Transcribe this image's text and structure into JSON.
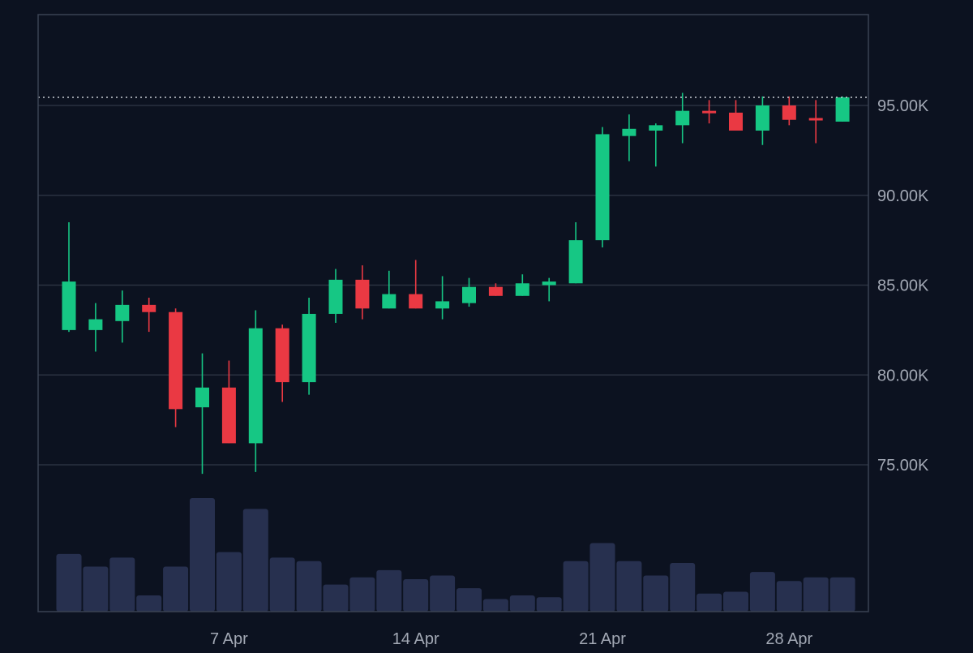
{
  "colors": {
    "background": "#0c1220",
    "frame": "#3a4252",
    "grid": "#2a3140",
    "up": "#16c784",
    "down": "#ea3943",
    "volume": "#27304f",
    "axis_text": "#a3a9b5",
    "price_line": "#c8ccd4"
  },
  "chart_data": {
    "type": "candlestick",
    "x_tick_labels": [
      {
        "label": "7 Apr",
        "date": "2025-04-07"
      },
      {
        "label": "14 Apr",
        "date": "2025-04-14"
      },
      {
        "label": "21 Apr",
        "date": "2025-04-21"
      },
      {
        "label": "28 Apr",
        "date": "2025-04-28"
      }
    ],
    "y_tick_values": [
      75000,
      80000,
      85000,
      90000,
      95000
    ],
    "y_tick_labels": [
      "75.00K",
      "80.00K",
      "85.00K",
      "90.00K",
      "95.00K"
    ],
    "ylim": [
      73000,
      100000
    ],
    "last_price": 95450,
    "grid": true,
    "candles": [
      {
        "date": "2025-04-01",
        "open": 82500,
        "high": 88500,
        "low": 82400,
        "close": 85200,
        "volume": 32
      },
      {
        "date": "2025-04-02",
        "open": 82500,
        "high": 84000,
        "low": 81300,
        "close": 83100,
        "volume": 25
      },
      {
        "date": "2025-04-03",
        "open": 83000,
        "high": 84700,
        "low": 81800,
        "close": 83900,
        "volume": 30
      },
      {
        "date": "2025-04-04",
        "open": 83900,
        "high": 84300,
        "low": 82400,
        "close": 83500,
        "volume": 9
      },
      {
        "date": "2025-04-05",
        "open": 83500,
        "high": 83700,
        "low": 77100,
        "close": 78100,
        "volume": 25
      },
      {
        "date": "2025-04-06",
        "open": 78200,
        "high": 81200,
        "low": 74500,
        "close": 79300,
        "volume": 63
      },
      {
        "date": "2025-04-07",
        "open": 79300,
        "high": 80800,
        "low": 76200,
        "close": 76200,
        "volume": 33
      },
      {
        "date": "2025-04-08",
        "open": 76200,
        "high": 83600,
        "low": 74600,
        "close": 82600,
        "volume": 57
      },
      {
        "date": "2025-04-09",
        "open": 82600,
        "high": 82800,
        "low": 78500,
        "close": 79600,
        "volume": 30
      },
      {
        "date": "2025-04-10",
        "open": 79600,
        "high": 84300,
        "low": 78900,
        "close": 83400,
        "volume": 28
      },
      {
        "date": "2025-04-11",
        "open": 83400,
        "high": 85900,
        "low": 82900,
        "close": 85300,
        "volume": 15
      },
      {
        "date": "2025-04-12",
        "open": 85300,
        "high": 86100,
        "low": 83100,
        "close": 83700,
        "volume": 19
      },
      {
        "date": "2025-04-13",
        "open": 83700,
        "high": 85800,
        "low": 83700,
        "close": 84500,
        "volume": 23
      },
      {
        "date": "2025-04-14",
        "open": 84500,
        "high": 86400,
        "low": 83700,
        "close": 83700,
        "volume": 18
      },
      {
        "date": "2025-04-15",
        "open": 83700,
        "high": 85500,
        "low": 83100,
        "close": 84100,
        "volume": 20
      },
      {
        "date": "2025-04-16",
        "open": 84000,
        "high": 85400,
        "low": 83800,
        "close": 84900,
        "volume": 13
      },
      {
        "date": "2025-04-17",
        "open": 84900,
        "high": 85100,
        "low": 84400,
        "close": 84400,
        "volume": 7
      },
      {
        "date": "2025-04-18",
        "open": 84400,
        "high": 85600,
        "low": 84400,
        "close": 85100,
        "volume": 9
      },
      {
        "date": "2025-04-19",
        "open": 85000,
        "high": 85400,
        "low": 84100,
        "close": 85200,
        "volume": 8
      },
      {
        "date": "2025-04-20",
        "open": 85100,
        "high": 88500,
        "low": 85100,
        "close": 87500,
        "volume": 28
      },
      {
        "date": "2025-04-21",
        "open": 87500,
        "high": 93800,
        "low": 87100,
        "close": 93400,
        "volume": 38
      },
      {
        "date": "2025-04-22",
        "open": 93300,
        "high": 94500,
        "low": 91900,
        "close": 93700,
        "volume": 28
      },
      {
        "date": "2025-04-23",
        "open": 93600,
        "high": 94000,
        "low": 91600,
        "close": 93900,
        "volume": 20
      },
      {
        "date": "2025-04-24",
        "open": 93900,
        "high": 95700,
        "low": 92900,
        "close": 94700,
        "volume": 27
      },
      {
        "date": "2025-04-25",
        "open": 94700,
        "high": 95300,
        "low": 94000,
        "close": 94600,
        "volume": 10
      },
      {
        "date": "2025-04-26",
        "open": 94600,
        "high": 95300,
        "low": 93600,
        "close": 93600,
        "volume": 11
      },
      {
        "date": "2025-04-27",
        "open": 93600,
        "high": 95500,
        "low": 92800,
        "close": 95000,
        "volume": 22
      },
      {
        "date": "2025-04-28",
        "open": 95000,
        "high": 95500,
        "low": 93900,
        "close": 94200,
        "volume": 17
      },
      {
        "date": "2025-04-29",
        "open": 94300,
        "high": 95300,
        "low": 92900,
        "close": 94200,
        "volume": 19
      },
      {
        "date": "2025-04-30",
        "open": 94100,
        "high": 95500,
        "low": 94100,
        "close": 95450,
        "volume": 19
      }
    ]
  }
}
